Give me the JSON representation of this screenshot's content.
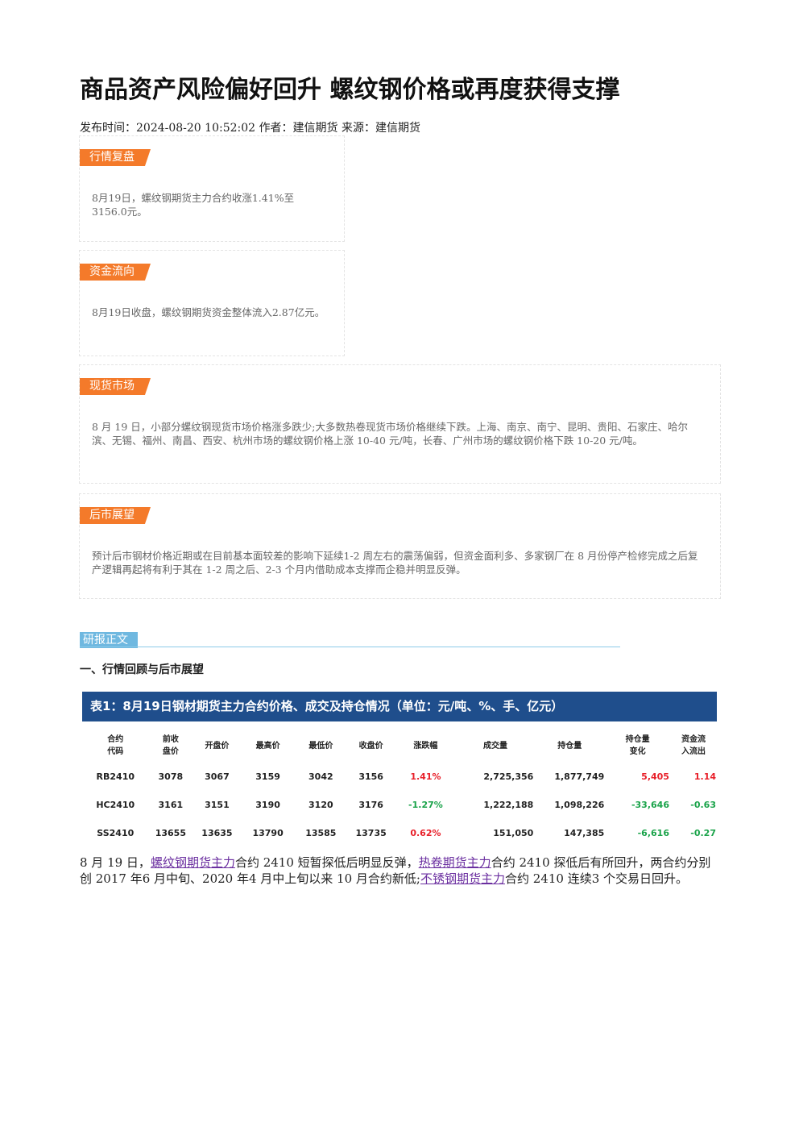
{
  "header": {
    "title": "商品资产风险偏好回升 螺纹钢价格或再度获得支撑",
    "meta": "发布时间：2024-08-20 10:52:02 作者：建信期货 来源：建信期货"
  },
  "sections": [
    {
      "tag": "行情复盘",
      "text": "8月19日，螺纹钢期货主力合约收涨1.41%至3156.0元。"
    },
    {
      "tag": "资金流向",
      "text": "8月19日收盘，螺纹钢期货资金整体流入2.87亿元。"
    },
    {
      "tag": "现货市场",
      "text": "8 月 19 日，小部分螺纹钢现货市场价格涨多跌少;大多数热卷现货市场价格继续下跌。上海、南京、南宁、昆明、贵阳、石家庄、哈尔滨、无锡、福州、南昌、西安、杭州市场的螺纹钢价格上涨 10-40 元/吨，长春、广州市场的螺纹钢价格下跌 10-20 元/吨。"
    },
    {
      "tag": "后市展望",
      "text": "预计后市钢材价格近期或在目前基本面较差的影响下延续1-2 周左右的震荡偏弱，但资金面利多、多家钢厂在 8 月份停产检修完成之后复产逻辑再起将有利于其在 1-2 周之后、2-3 个月内借助成本支撑而企稳并明显反弹。"
    }
  ],
  "report": {
    "tag": "研报正文",
    "heading": "一、行情回顾与后市展望"
  },
  "table": {
    "caption": "表1：8月19日钢材期货主力合约价格、成交及持仓情况（单位：元/吨、%、手、亿元）",
    "headers": [
      "合约\n代码",
      "前收\n盘价",
      "开盘价",
      "最高价",
      "最低价",
      "收盘价",
      "涨跌幅",
      "成交量",
      "持仓量",
      "持仓量\n变化",
      "资金流\n入流出"
    ],
    "rows": [
      [
        "RB2410",
        "3078",
        "3067",
        "3159",
        "3042",
        "3156",
        "1.41%",
        "2,725,356",
        "1,877,749",
        "5,405",
        "1.14"
      ],
      [
        "HC2410",
        "3161",
        "3151",
        "3190",
        "3120",
        "3176",
        "-1.27%",
        "1,222,188",
        "1,098,226",
        "-33,646",
        "-0.63"
      ],
      [
        "SS2410",
        "13655",
        "13635",
        "13790",
        "13585",
        "13735",
        "0.62%",
        "151,050",
        "147,385",
        "-6,616",
        "-0.27"
      ]
    ]
  },
  "paragraph": {
    "parts": [
      {
        "text": "8 月 19 日，"
      },
      {
        "text": "螺纹钢期货主力",
        "link": true
      },
      {
        "text": "合约 2410 短暂探低后明显反弹，"
      },
      {
        "text": "热卷期货主力",
        "link": true
      },
      {
        "text": "合约 2410 探低后有所回升，两合约分别创 2017 年6 月中旬、2020 年4 月中上旬以来 10 月合约新低;"
      },
      {
        "text": "不锈钢期货主力",
        "link": true
      },
      {
        "text": "合约 2410 连续3 个交易日回升。"
      }
    ]
  }
}
